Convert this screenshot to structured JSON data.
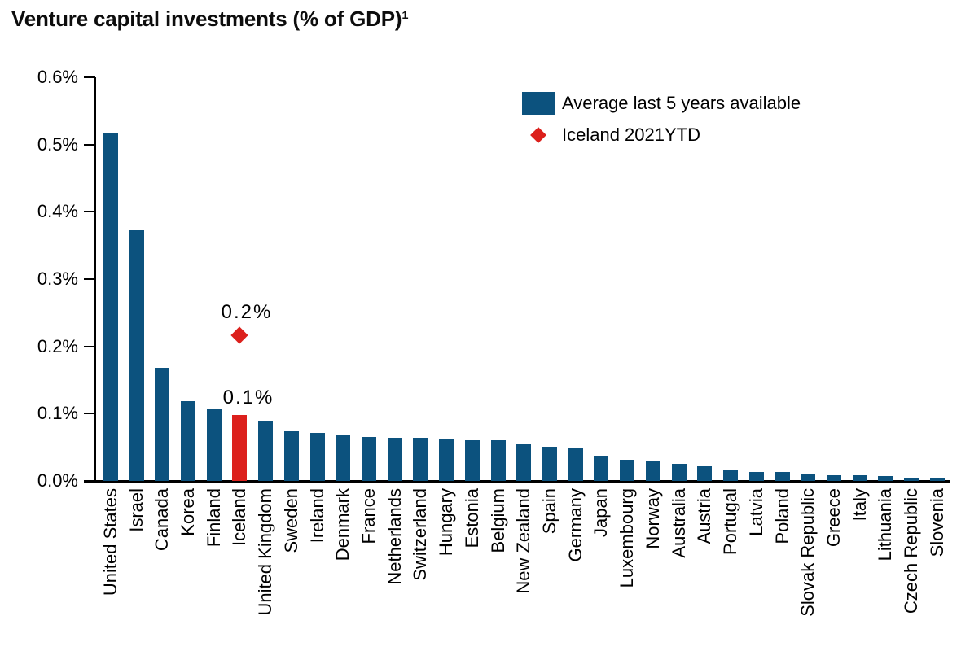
{
  "title": "Venture capital investments (% of GDP)¹",
  "colors": {
    "bar_blue": "#0C527E",
    "highlight_red": "#DC201C",
    "axis": "#000000",
    "text": "#000000"
  },
  "legend": {
    "items": [
      {
        "label": "Average last 5 years available",
        "marker": "square",
        "color": "#0C527E"
      },
      {
        "label": "Iceland 2021YTD",
        "marker": "diamond",
        "color": "#DC201C"
      }
    ]
  },
  "chart_data": {
    "type": "bar",
    "title": "Venture capital investments (% of GDP)¹",
    "xlabel": "",
    "ylabel": "Venture capital investments, % of GDP",
    "ylim": [
      0,
      0.6
    ],
    "y_unit": "%",
    "grid": false,
    "legend_position": "top-right",
    "y_ticks": [
      {
        "value": 0.0,
        "label": "0.0%"
      },
      {
        "value": 0.1,
        "label": "0.1%"
      },
      {
        "value": 0.2,
        "label": "0.2%"
      },
      {
        "value": 0.3,
        "label": "0.3%"
      },
      {
        "value": 0.4,
        "label": "0.4%"
      },
      {
        "value": 0.5,
        "label": "0.5%"
      },
      {
        "value": 0.6,
        "label": "0.6%"
      }
    ],
    "categories": [
      "United States",
      "Israel",
      "Canada",
      "Korea",
      "Finland",
      "Iceland",
      "United Kingdom",
      "Sweden",
      "Ireland",
      "Denmark",
      "France",
      "Netherlands",
      "Switzerland",
      "Hungary",
      "Estonia",
      "Belgium",
      "New Zealand",
      "Spain",
      "Germany",
      "Japan",
      "Luxembourg",
      "Norway",
      "Australia",
      "Austria",
      "Portugal",
      "Latvia",
      "Poland",
      "Slovak Republic",
      "Greece",
      "Italy",
      "Lithuania",
      "Czech Republic",
      "Slovenia"
    ],
    "series": [
      {
        "name": "Average last 5 years available",
        "type": "bar",
        "color": "#0C527E",
        "values": [
          0.518,
          0.372,
          0.168,
          0.118,
          0.107,
          0.098,
          0.089,
          0.074,
          0.071,
          0.069,
          0.065,
          0.064,
          0.064,
          0.062,
          0.061,
          0.06,
          0.054,
          0.051,
          0.048,
          0.037,
          0.031,
          0.03,
          0.025,
          0.022,
          0.017,
          0.0135,
          0.013,
          0.011,
          0.009,
          0.009,
          0.007,
          0.005,
          0.005
        ]
      },
      {
        "name": "Iceland 2021YTD",
        "type": "scatter",
        "marker": "diamond",
        "color": "#DC201C",
        "points": [
          {
            "category": "Iceland",
            "value": 0.216,
            "label": "0.2%"
          }
        ]
      }
    ],
    "highlight": {
      "category": "Iceland",
      "color": "#DC201C",
      "label": "0.1%"
    },
    "annotations": [
      {
        "text": "0.2%",
        "target": "iceland-2021ytd-point"
      },
      {
        "text": "0.1%",
        "target": "iceland-bar"
      }
    ]
  }
}
